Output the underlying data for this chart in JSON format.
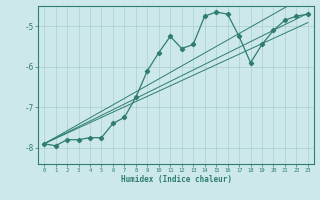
{
  "xlabel": "Humidex (Indice chaleur)",
  "bg_color": "#cde8e8",
  "line_color": "#2e7d6e",
  "grid_color": "#aacfcf",
  "x_data": [
    0,
    1,
    2,
    3,
    4,
    5,
    6,
    7,
    8,
    9,
    10,
    11,
    12,
    13,
    14,
    15,
    16,
    17,
    18,
    19,
    20,
    21,
    22,
    23
  ],
  "y_main": [
    -7.9,
    -7.95,
    -7.8,
    -7.8,
    -7.75,
    -7.75,
    -7.4,
    -7.25,
    -6.75,
    -6.1,
    -5.65,
    -5.25,
    -5.55,
    -5.45,
    -4.75,
    -4.65,
    -4.7,
    -5.25,
    -5.9,
    -5.45,
    -5.1,
    -4.85,
    -4.75,
    -4.7
  ],
  "y_line2": [
    -7.9,
    -7.74,
    -7.58,
    -7.42,
    -7.26,
    -7.1,
    -6.94,
    -6.78,
    -6.62,
    -6.46,
    -6.3,
    -6.14,
    -5.98,
    -5.82,
    -5.66,
    -5.5,
    -5.34,
    -5.18,
    -5.02,
    -4.86,
    -4.7,
    -4.54,
    -4.38,
    -4.22
  ],
  "y_line3": [
    -7.9,
    -7.76,
    -7.62,
    -7.48,
    -7.34,
    -7.2,
    -7.06,
    -6.92,
    -6.78,
    -6.64,
    -6.5,
    -6.36,
    -6.22,
    -6.08,
    -5.94,
    -5.8,
    -5.66,
    -5.52,
    -5.38,
    -5.24,
    -5.1,
    -4.96,
    -4.82,
    -4.68
  ],
  "y_line4": [
    -7.9,
    -7.77,
    -7.64,
    -7.51,
    -7.38,
    -7.25,
    -7.12,
    -6.99,
    -6.86,
    -6.73,
    -6.6,
    -6.47,
    -6.34,
    -6.21,
    -6.08,
    -5.95,
    -5.82,
    -5.69,
    -5.56,
    -5.43,
    -5.3,
    -5.17,
    -5.04,
    -4.91
  ],
  "ylim": [
    -8.4,
    -4.5
  ],
  "xlim": [
    -0.5,
    23.5
  ],
  "yticks": [
    -8,
    -7,
    -6,
    -5
  ],
  "xticks": [
    0,
    1,
    2,
    3,
    4,
    5,
    6,
    7,
    8,
    9,
    10,
    11,
    12,
    13,
    14,
    15,
    16,
    17,
    18,
    19,
    20,
    21,
    22,
    23
  ]
}
